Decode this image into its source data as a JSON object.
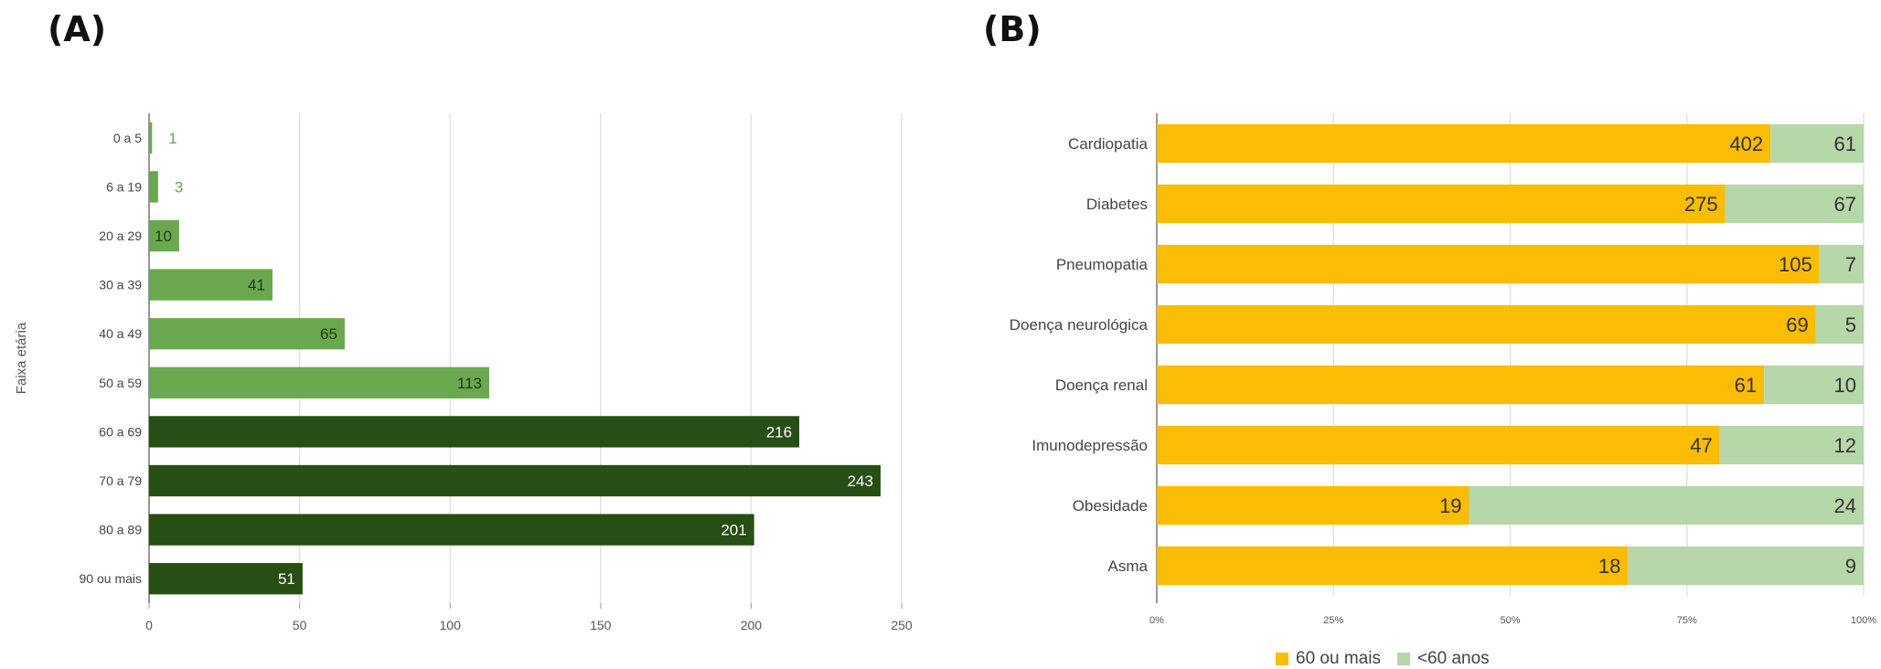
{
  "panels": {
    "a": "(A)",
    "b": "(B)"
  },
  "chart_data": [
    {
      "type": "bar",
      "orientation": "horizontal",
      "ylabel": "Faixa etária",
      "categories": [
        "0 a 5",
        "6 a 19",
        "20 a 29",
        "30 a 39",
        "40 a 49",
        "50 a 59",
        "60 a 69",
        "70 a 79",
        "80 a 89",
        "90 ou mais"
      ],
      "values": [
        1,
        3,
        10,
        41,
        65,
        113,
        216,
        243,
        201,
        51
      ],
      "xlim": [
        0,
        250
      ],
      "xticks": [
        "0",
        "50",
        "100",
        "150",
        "200",
        "250"
      ],
      "colors": [
        "#6aa84f",
        "#6aa84f",
        "#6aa84f",
        "#6aa84f",
        "#6aa84f",
        "#6aa84f",
        "#274e13",
        "#274e13",
        "#274e13",
        "#274e13"
      ],
      "grid": true
    },
    {
      "type": "bar",
      "orientation": "horizontal",
      "stacked": "percent",
      "categories": [
        "Cardiopatia",
        "Diabetes",
        "Pneumopatia",
        "Doença neurológica",
        "Doença renal",
        "Imunodepressão",
        "Obesidade",
        "Asma"
      ],
      "series": [
        {
          "name": "60 ou mais",
          "color": "#fbbc04",
          "values": [
            402,
            275,
            105,
            69,
            61,
            47,
            19,
            18
          ]
        },
        {
          "name": "<60 anos",
          "color": "#b6d7a8",
          "values": [
            61,
            67,
            7,
            5,
            10,
            12,
            24,
            9
          ]
        }
      ],
      "xlim": [
        0,
        100
      ],
      "xticks": [
        "0%",
        "25%",
        "50%",
        "75%",
        "100%"
      ],
      "legend_position": "bottom",
      "grid": true
    }
  ]
}
